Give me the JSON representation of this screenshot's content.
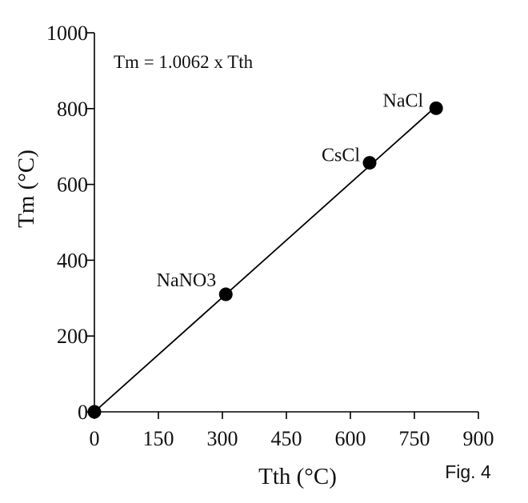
{
  "chart_data": {
    "type": "scatter",
    "title": "",
    "xlabel": "Tth (°C)",
    "ylabel": "Tm (°C)",
    "xlim": [
      0,
      900
    ],
    "ylim": [
      0,
      1000
    ],
    "xticks": [
      "0",
      "150",
      "300",
      "450",
      "600",
      "750",
      "900"
    ],
    "yticks": [
      "0",
      "200",
      "400",
      "600",
      "800",
      "1000"
    ],
    "grid": false,
    "points": [
      {
        "label": "",
        "x": 0,
        "y": 0
      },
      {
        "label": "NaNO3",
        "x": 308,
        "y": 310
      },
      {
        "label": "CsCl",
        "x": 645,
        "y": 657
      },
      {
        "label": "NaCl",
        "x": 801,
        "y": 801
      }
    ],
    "fit_line": {
      "slope": 1.0062,
      "x": [
        0,
        801
      ]
    },
    "annotation": "Tm = 1.0062 x Tth"
  },
  "caption": "Fig. 4",
  "colors": {
    "ink": "#000000"
  }
}
